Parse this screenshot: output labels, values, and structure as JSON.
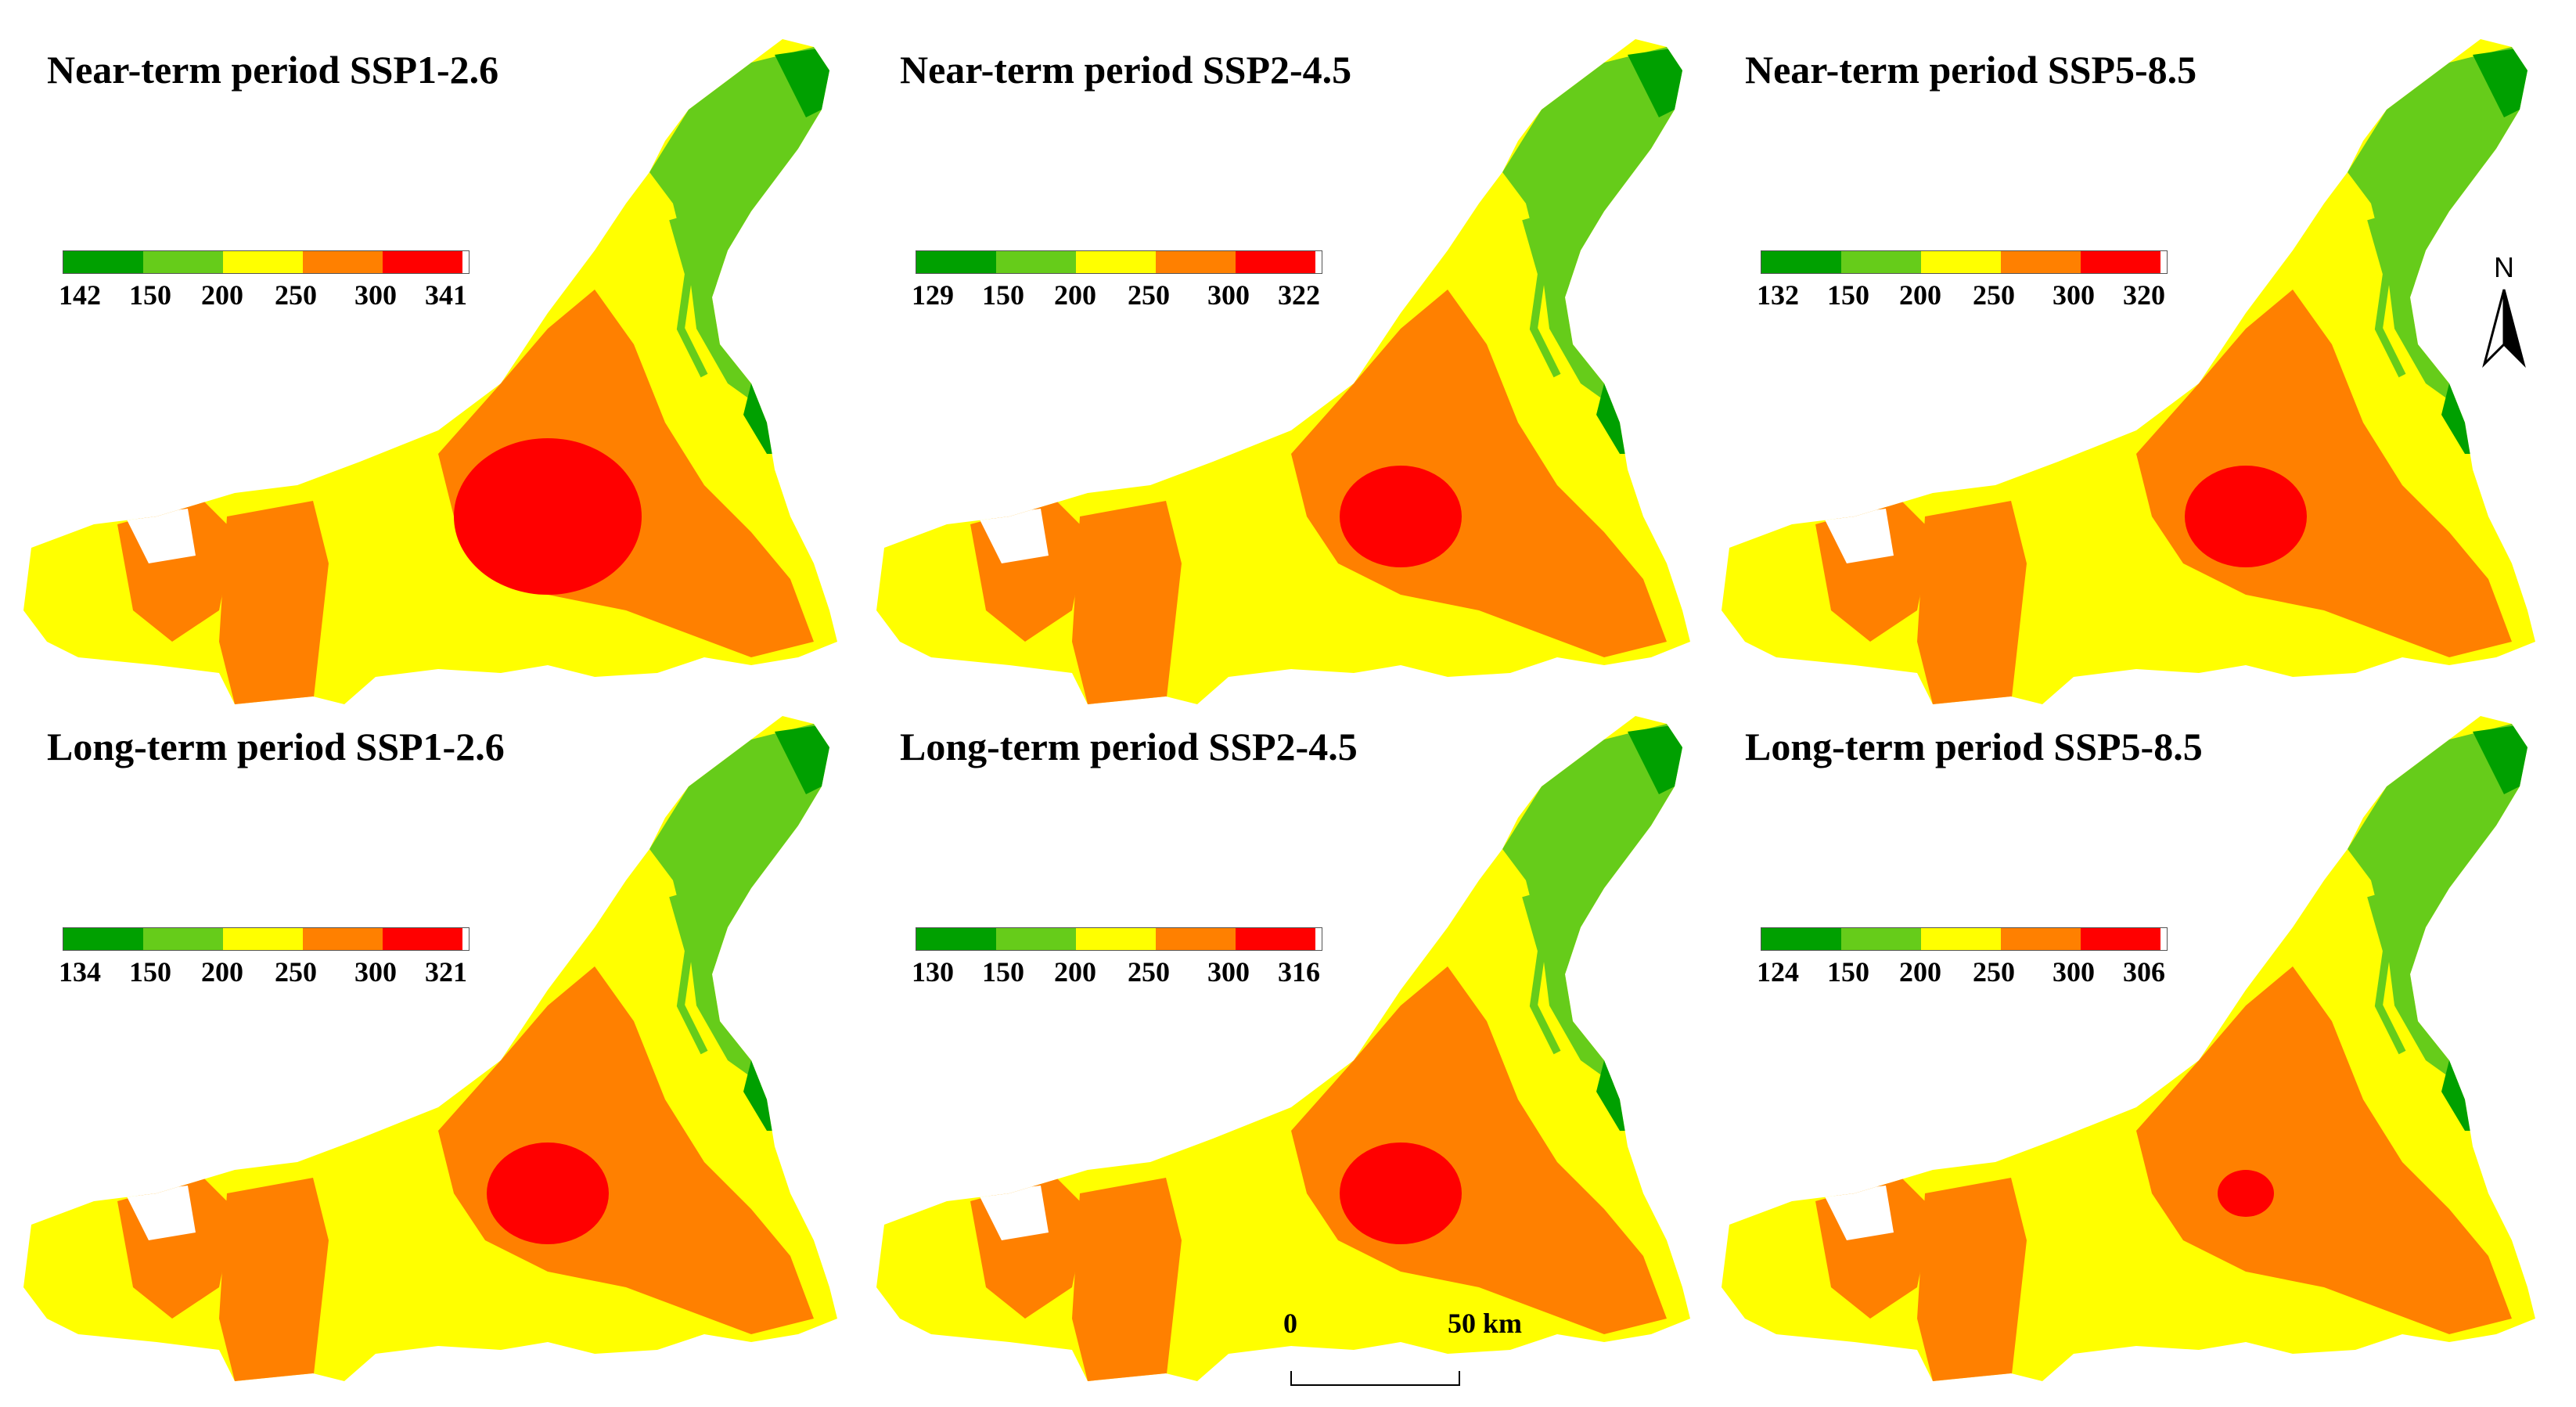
{
  "colors": {
    "dark_green": "#00a000",
    "green": "#66cc1a",
    "yellow": "#ffff00",
    "orange": "#ff8000",
    "red": "#ff0000"
  },
  "legend_classes": [
    "150",
    "200",
    "250",
    "300"
  ],
  "panels": [
    {
      "title": "Near-term period SSP1-2.6",
      "min": "142",
      "max": "341",
      "red_core": "large"
    },
    {
      "title": "Near-term period SSP2-4.5",
      "min": "129",
      "max": "322",
      "red_core": "medium"
    },
    {
      "title": "Near-term period SSP5-8.5",
      "min": "132",
      "max": "320",
      "red_core": "medium"
    },
    {
      "title": "Long-term period SSP1-2.6",
      "min": "134",
      "max": "321",
      "red_core": "medium"
    },
    {
      "title": "Long-term period SSP2-4.5",
      "min": "130",
      "max": "316",
      "red_core": "medium"
    },
    {
      "title": "Long-term period SSP5-8.5",
      "min": "124",
      "max": "306",
      "red_core": "small"
    }
  ],
  "north_arrow": {
    "label": "N"
  },
  "scale_bar": {
    "start": "0",
    "end": "50 km"
  }
}
